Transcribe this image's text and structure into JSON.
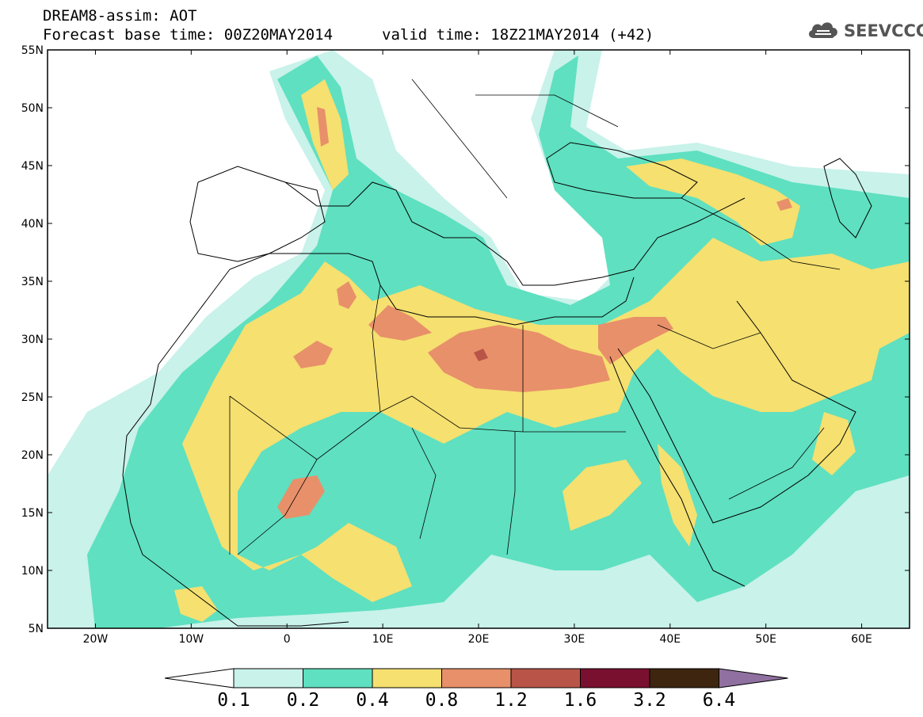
{
  "header": {
    "title_line1": "DREAM8-assim: AOT",
    "title_line2": "Forecast base time: 00Z20MAY2014",
    "valid_time": "valid time: 18Z21MAY2014 (+42)",
    "logo_text": "SEEVCCC",
    "logo_icon": "cloud-icon"
  },
  "map": {
    "projection": "lat-lon",
    "lon_range": [
      -25,
      65
    ],
    "lat_range": [
      5,
      55
    ],
    "lat_ticks": [
      "55N",
      "50N",
      "45N",
      "40N",
      "35N",
      "30N",
      "25N",
      "20N",
      "15N",
      "10N",
      "5N"
    ],
    "lon_ticks": [
      "20W",
      "10W",
      "0",
      "10E",
      "20E",
      "30E",
      "40E",
      "50E",
      "60E"
    ],
    "field": "Aerosol Optical Thickness",
    "land_color": "#ffffff",
    "boundary_color": "#000000"
  },
  "colorbar": {
    "colors": [
      "#c8f2ea",
      "#5fe0c0",
      "#f5e070",
      "#e8906a",
      "#b85548",
      "#7a1030",
      "#3d2510",
      "#9070a0"
    ],
    "under_color": "#ffffff",
    "labels": [
      "0.1",
      "0.2",
      "0.4",
      "0.8",
      "1.2",
      "1.6",
      "3.2",
      "6.4"
    ]
  }
}
